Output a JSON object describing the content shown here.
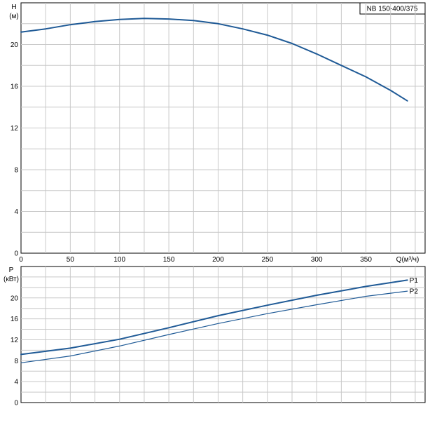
{
  "chart_data": [
    {
      "type": "line",
      "title": "NB 150-400/375",
      "ylabel_symbol": "H",
      "ylabel_unit": "(м)",
      "xlabel": "Q(м³/ч)",
      "xlim": [
        0,
        410
      ],
      "ylim": [
        0,
        24
      ],
      "x_ticks": [
        0,
        50,
        100,
        150,
        200,
        250,
        300,
        350
      ],
      "y_ticks": [
        0,
        4,
        8,
        12,
        16,
        20
      ],
      "grid": true,
      "series": [
        {
          "name": "",
          "color": "#1f5a96",
          "x": [
            0,
            25,
            50,
            75,
            100,
            125,
            150,
            175,
            200,
            225,
            250,
            275,
            300,
            325,
            350,
            375,
            392
          ],
          "y": [
            21.2,
            21.5,
            21.9,
            22.2,
            22.4,
            22.5,
            22.45,
            22.3,
            22.0,
            21.5,
            20.9,
            20.1,
            19.1,
            18.0,
            16.9,
            15.6,
            14.6
          ]
        }
      ]
    },
    {
      "type": "line",
      "ylabel_symbol": "P",
      "ylabel_unit": "(кВт)",
      "xlim": [
        0,
        410
      ],
      "ylim": [
        0,
        26
      ],
      "y_ticks": [
        0,
        4,
        8,
        12,
        16,
        20
      ],
      "grid": true,
      "series": [
        {
          "name": "P1",
          "color": "#1f5a96",
          "x": [
            0,
            50,
            100,
            150,
            200,
            250,
            300,
            350,
            392
          ],
          "y": [
            9.2,
            10.4,
            12.1,
            14.3,
            16.6,
            18.6,
            20.5,
            22.2,
            23.4
          ]
        },
        {
          "name": "P2",
          "color": "#1f5a96",
          "x": [
            0,
            50,
            100,
            150,
            200,
            250,
            300,
            350,
            392
          ],
          "y": [
            7.6,
            8.9,
            10.8,
            13.0,
            15.1,
            17.0,
            18.7,
            20.3,
            21.3
          ]
        }
      ]
    }
  ]
}
